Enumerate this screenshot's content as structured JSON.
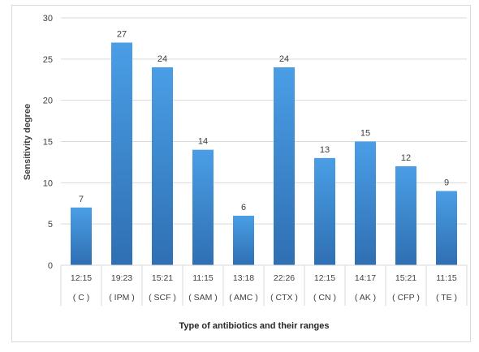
{
  "chart_data": {
    "type": "bar",
    "categories": [
      {
        "range": "12:15",
        "code": "( C )"
      },
      {
        "range": "19:23",
        "code": "( IPM )"
      },
      {
        "range": "15:21",
        "code": "( SCF )"
      },
      {
        "range": "11:15",
        "code": "( SAM )"
      },
      {
        "range": "13:18",
        "code": "( AMC )"
      },
      {
        "range": "22:26",
        "code": "( CTX )"
      },
      {
        "range": "12:15",
        "code": "( CN )"
      },
      {
        "range": "14:17",
        "code": "( AK )"
      },
      {
        "range": "15:21",
        "code": "( CFP )"
      },
      {
        "range": "11:15",
        "code": "( TE )"
      }
    ],
    "values": [
      7,
      27,
      24,
      14,
      6,
      24,
      13,
      15,
      12,
      9
    ],
    "title": "",
    "xlabel": "Type of antibiotics and their ranges",
    "ylabel": "Sensitivity degree",
    "ylim": [
      0,
      30
    ],
    "yticks": [
      0,
      5,
      10,
      15,
      20,
      25,
      30
    ],
    "grid": true,
    "legend": "none",
    "colors": {
      "bar_top": "#4a9ee6",
      "bar_bottom": "#2f6fb2",
      "grid": "#d9d9d9",
      "text": "#404040",
      "label": "#262626"
    }
  }
}
